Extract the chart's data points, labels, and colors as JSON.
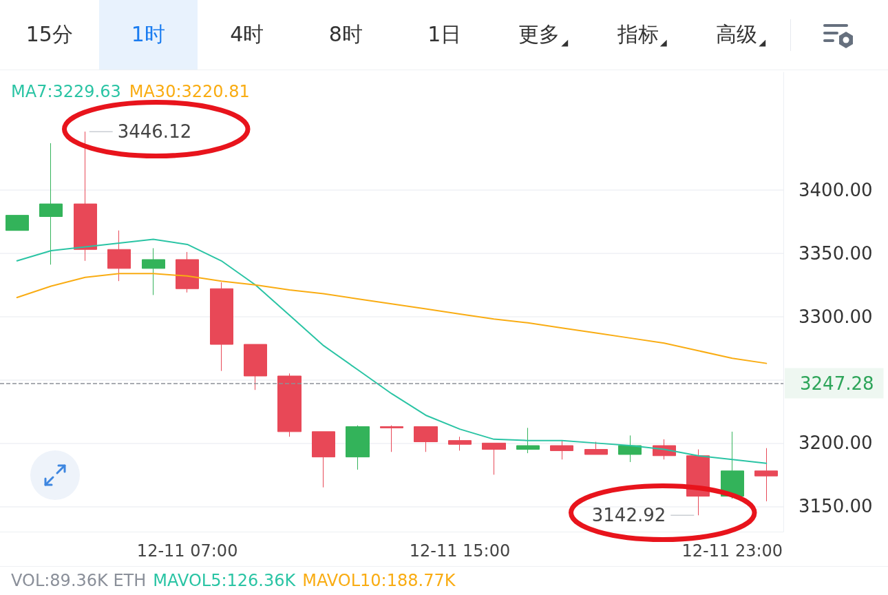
{
  "chart_data": [
    {
      "type": "other",
      "annotations": [
        "15分",
        "1时",
        "4时",
        "8时",
        "1日",
        "更多$_{◢}$",
        "指标$_{◢}$",
        "高级$_{◢}$"
      ]
    },
    {
      "type": "candlestick",
      "categories": [
        null,
        null,
        null,
        null,
        null,
        "12-11 07:00",
        null,
        null,
        null,
        null,
        null,
        null,
        null,
        "12-11 15:00",
        null,
        null,
        null,
        null,
        null,
        null,
        null,
        "12-11 23:00",
        null
      ],
      "ohlc": [
        [
          3368,
          3380,
          3368,
          3380
        ],
        [
          3379,
          3437,
          3341,
          3389
        ],
        [
          3389,
          3446.12,
          3344,
          3353
        ],
        [
          3353,
          3368,
          3328,
          3338
        ],
        [
          3338,
          3354,
          3317,
          3345
        ],
        [
          3345,
          3351,
          3319,
          3322
        ],
        [
          3322,
          3327,
          3257,
          3278
        ],
        [
          3278,
          3278,
          3242,
          3253
        ],
        [
          3253,
          3255,
          3205,
          3209
        ],
        [
          3209,
          3209,
          3165,
          3189
        ],
        [
          3189,
          3214,
          3179,
          3213
        ],
        [
          3213,
          3214,
          3193,
          3212
        ],
        [
          3213,
          3213,
          3193,
          3201
        ],
        [
          3202,
          3205,
          3194,
          3199
        ],
        [
          3200,
          3200,
          3175,
          3195
        ],
        [
          3195,
          3212,
          3192,
          3198
        ],
        [
          3198,
          3202,
          3187,
          3194
        ],
        [
          3195,
          3201,
          3191,
          3191
        ],
        [
          3191,
          3206,
          3185,
          3198
        ],
        [
          3198,
          3203,
          3187,
          3190
        ],
        [
          3190,
          3195,
          3142.92,
          3158
        ],
        [
          3158,
          3209,
          3156,
          3178
        ],
        [
          3178,
          3196,
          3154,
          3174
        ]
      ],
      "colors": [
        "#33b35a",
        "#33b35a",
        "#e84857",
        "#e84857",
        "#33b35a",
        "#e84857",
        "#e84857",
        "#e84857",
        "#e84857",
        "#e84857",
        "#33b35a",
        "#e84857",
        "#e84857",
        "#e84857",
        "#e84857",
        "#33b35a",
        "#e84857",
        "#e84857",
        "#33b35a",
        "#e84857",
        "#e84857",
        "#33b35a",
        "#e84857"
      ],
      "series": [
        {
          "name": "MA7:3229.63",
          "type": "line",
          "color": "#2ac4a4",
          "values": [
            3344,
            3352,
            3355,
            3358,
            3361,
            3357,
            3344,
            3325,
            3301,
            3277,
            3258,
            3239,
            3222,
            3211,
            3203,
            3202,
            3202,
            3200,
            3198,
            3195,
            3190,
            3187,
            3184
          ]
        },
        {
          "name": "MA30:3220.81",
          "type": "line",
          "color": "#f9ac12",
          "values": [
            3315,
            3324,
            3331,
            3334,
            3334,
            3332,
            3328,
            3325,
            3321,
            3318,
            3314,
            3310,
            3306,
            3302,
            3298,
            3295,
            3291,
            3287,
            3283,
            3279,
            3273,
            3267,
            3263
          ]
        }
      ],
      "ylim": [
        3130,
        3493
      ],
      "yticks": [
        {
          "value": 3150,
          "label": "3150.00"
        },
        {
          "value": 3200,
          "label": "3200.00"
        },
        {
          "value": 3250,
          "label": null
        },
        {
          "value": 3300,
          "label": "3300.00"
        },
        {
          "value": 3350,
          "label": "3350.00"
        },
        {
          "value": 3400,
          "label": "3400.00"
        }
      ],
      "grid": "y",
      "legend": "top left",
      "marker": "none",
      "ref_lines": [
        {
          "axis": "y",
          "value": 3247.28,
          "color": "#8c9098",
          "line_style": "dashed"
        }
      ],
      "annotations": [
        "3446.12",
        "3142.92",
        "3247.28"
      ]
    },
    {
      "type": "other",
      "annotations": [
        "VOL:89.36K ETH",
        "MAVOL5:126.36K",
        "MAVOL10:188.77K"
      ],
      "colors": [
        "#8a8f99",
        "#2ac4a4",
        "#f9ac12"
      ]
    }
  ]
}
